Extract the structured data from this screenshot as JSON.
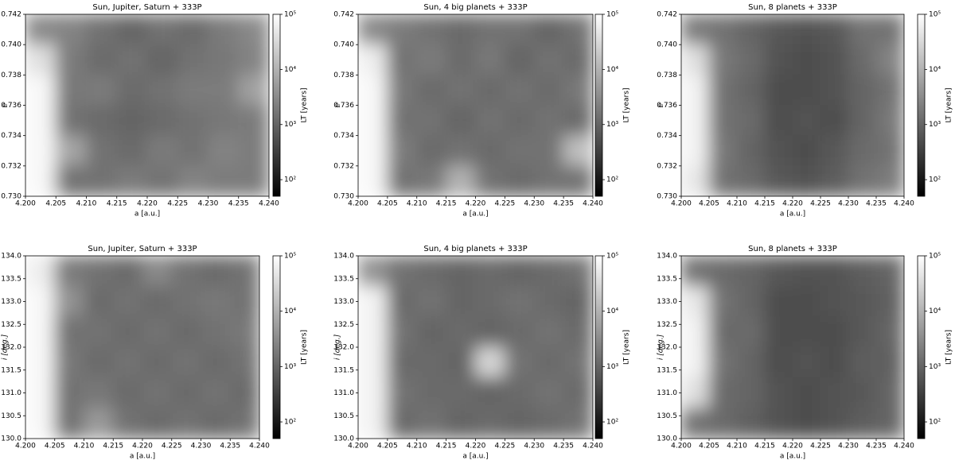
{
  "chart_data": [
    {
      "type": "heatmap",
      "title": "Sun, Jupiter, Saturn + 333P",
      "x_label": "a [a.u.]",
      "y_label": "e",
      "xlim": [
        4.2,
        4.24
      ],
      "xticks": [
        {
          "value": 4.2,
          "label": "4.200"
        },
        {
          "value": 4.205,
          "label": "4.205"
        },
        {
          "value": 4.21,
          "label": "4.210"
        },
        {
          "value": 4.215,
          "label": "4.215"
        },
        {
          "value": 4.22,
          "label": "4.220"
        },
        {
          "value": 4.225,
          "label": "4.225"
        },
        {
          "value": 4.23,
          "label": "4.230"
        },
        {
          "value": 4.235,
          "label": "4.235"
        },
        {
          "value": 4.24,
          "label": "4.240"
        }
      ],
      "ylim": [
        0.73,
        0.742
      ],
      "yticks": [
        {
          "value": 0.73,
          "label": "0.730"
        },
        {
          "value": 0.732,
          "label": "0.732"
        },
        {
          "value": 0.734,
          "label": "0.734"
        },
        {
          "value": 0.736,
          "label": "0.736"
        },
        {
          "value": 0.738,
          "label": "0.738"
        },
        {
          "value": 0.74,
          "label": "0.740"
        },
        {
          "value": 0.742,
          "label": "0.742"
        }
      ],
      "z": [
        [
          3000,
          2500,
          1500,
          1000,
          1500,
          1200,
          2000,
          3000
        ],
        [
          40000,
          2000,
          1200,
          1500,
          1000,
          1500,
          1800,
          2500
        ],
        [
          80000,
          1800,
          2000,
          1200,
          1500,
          2000,
          2000,
          6000
        ],
        [
          80000,
          1500,
          1200,
          1000,
          1200,
          1500,
          1800,
          2000
        ],
        [
          80000,
          7000,
          1500,
          1200,
          2000,
          1500,
          2500,
          2000
        ],
        [
          80000,
          1500,
          1500,
          2000,
          1500,
          2500,
          2000,
          2000
        ]
      ],
      "colorbar": {
        "label": "LT [years]",
        "log": true,
        "lim": [
          50,
          100000
        ],
        "ticks": [
          {
            "value": 100,
            "label": "10²"
          },
          {
            "value": 1000,
            "label": "10³"
          },
          {
            "value": 10000,
            "label": "10⁴"
          },
          {
            "value": 100000,
            "label": "10⁵"
          }
        ]
      }
    },
    {
      "type": "heatmap",
      "title": "Sun, 4 big planets + 333P",
      "x_label": "a [a.u.]",
      "y_label": "e",
      "xlim": [
        4.2,
        4.24
      ],
      "xticks": [
        {
          "value": 4.2,
          "label": "4.200"
        },
        {
          "value": 4.205,
          "label": "4.205"
        },
        {
          "value": 4.21,
          "label": "4.210"
        },
        {
          "value": 4.215,
          "label": "4.215"
        },
        {
          "value": 4.22,
          "label": "4.220"
        },
        {
          "value": 4.225,
          "label": "4.225"
        },
        {
          "value": 4.23,
          "label": "4.230"
        },
        {
          "value": 4.235,
          "label": "4.235"
        },
        {
          "value": 4.24,
          "label": "4.240"
        }
      ],
      "ylim": [
        0.73,
        0.742
      ],
      "yticks": [
        {
          "value": 0.73,
          "label": "0.730"
        },
        {
          "value": 0.732,
          "label": "0.732"
        },
        {
          "value": 0.734,
          "label": "0.734"
        },
        {
          "value": 0.736,
          "label": "0.736"
        },
        {
          "value": 0.738,
          "label": "0.738"
        },
        {
          "value": 0.74,
          "label": "0.740"
        },
        {
          "value": 0.742,
          "label": "0.742"
        }
      ],
      "z": [
        [
          3000,
          2000,
          1500,
          1200,
          1500,
          1500,
          1000,
          1500
        ],
        [
          60000,
          1500,
          2000,
          1200,
          1800,
          1000,
          1500,
          1200
        ],
        [
          80000,
          1800,
          1200,
          1500,
          1200,
          1500,
          1200,
          1800
        ],
        [
          80000,
          1500,
          1500,
          1000,
          1500,
          1200,
          1500,
          1200
        ],
        [
          80000,
          2000,
          1200,
          1500,
          1200,
          1500,
          1500,
          15000
        ],
        [
          80000,
          1500,
          1800,
          10000,
          1500,
          1200,
          1500,
          1500
        ]
      ],
      "colorbar": {
        "label": "LT [years]",
        "log": true,
        "lim": [
          50,
          100000
        ],
        "ticks": [
          {
            "value": 100,
            "label": "10²"
          },
          {
            "value": 1000,
            "label": "10³"
          },
          {
            "value": 10000,
            "label": "10⁴"
          },
          {
            "value": 100000,
            "label": "10⁵"
          }
        ]
      }
    },
    {
      "type": "heatmap",
      "title": "Sun, 8 planets + 333P",
      "x_label": "a [a.u.]",
      "y_label": "e",
      "xlim": [
        4.2,
        4.24
      ],
      "xticks": [
        {
          "value": 4.2,
          "label": "4.200"
        },
        {
          "value": 4.205,
          "label": "4.205"
        },
        {
          "value": 4.21,
          "label": "4.210"
        },
        {
          "value": 4.215,
          "label": "4.215"
        },
        {
          "value": 4.22,
          "label": "4.220"
        },
        {
          "value": 4.225,
          "label": "4.225"
        },
        {
          "value": 4.23,
          "label": "4.230"
        },
        {
          "value": 4.235,
          "label": "4.235"
        },
        {
          "value": 4.24,
          "label": "4.240"
        }
      ],
      "ylim": [
        0.73,
        0.742
      ],
      "yticks": [
        {
          "value": 0.73,
          "label": "0.730"
        },
        {
          "value": 0.732,
          "label": "0.732"
        },
        {
          "value": 0.734,
          "label": "0.734"
        },
        {
          "value": 0.736,
          "label": "0.736"
        },
        {
          "value": 0.738,
          "label": "0.738"
        },
        {
          "value": 0.74,
          "label": "0.740"
        },
        {
          "value": 0.742,
          "label": "0.742"
        }
      ],
      "z": [
        [
          2000,
          1500,
          1000,
          700,
          600,
          700,
          1500,
          1500
        ],
        [
          40000,
          1800,
          1200,
          600,
          500,
          600,
          1200,
          2500
        ],
        [
          70000,
          1500,
          1000,
          500,
          500,
          600,
          1000,
          1500
        ],
        [
          70000,
          1500,
          1200,
          500,
          600,
          500,
          1000,
          1800
        ],
        [
          70000,
          1800,
          1000,
          600,
          500,
          700,
          1200,
          1500
        ],
        [
          50000,
          1500,
          1200,
          700,
          600,
          800,
          1500,
          2000
        ]
      ],
      "colorbar": {
        "label": "LT [years]",
        "log": true,
        "lim": [
          50,
          100000
        ],
        "ticks": [
          {
            "value": 100,
            "label": "10²"
          },
          {
            "value": 1000,
            "label": "10³"
          },
          {
            "value": 10000,
            "label": "10⁴"
          },
          {
            "value": 100000,
            "label": "10⁵"
          }
        ]
      }
    },
    {
      "type": "heatmap",
      "title": "Sun, Jupiter, Saturn + 333P",
      "x_label": "a [a.u.]",
      "y_label": "i [deg.]",
      "xlim": [
        4.2,
        4.24
      ],
      "xticks": [
        {
          "value": 4.2,
          "label": "4.200"
        },
        {
          "value": 4.205,
          "label": "4.205"
        },
        {
          "value": 4.21,
          "label": "4.210"
        },
        {
          "value": 4.215,
          "label": "4.215"
        },
        {
          "value": 4.22,
          "label": "4.220"
        },
        {
          "value": 4.225,
          "label": "4.225"
        },
        {
          "value": 4.23,
          "label": "4.230"
        },
        {
          "value": 4.235,
          "label": "4.235"
        },
        {
          "value": 4.24,
          "label": "4.240"
        }
      ],
      "ylim": [
        130,
        134
      ],
      "yticks": [
        {
          "value": 130,
          "label": "130.0"
        },
        {
          "value": 130.5,
          "label": "130.5"
        },
        {
          "value": 131,
          "label": "131.0"
        },
        {
          "value": 131.5,
          "label": "131.5"
        },
        {
          "value": 132,
          "label": "132.0"
        },
        {
          "value": 132.5,
          "label": "132.5"
        },
        {
          "value": 133,
          "label": "133.0"
        },
        {
          "value": 133.5,
          "label": "133.5"
        },
        {
          "value": 134,
          "label": "134.0"
        }
      ],
      "z": [
        [
          60000,
          2000,
          1500,
          1200,
          3000,
          1500,
          1200,
          1500
        ],
        [
          80000,
          4000,
          1200,
          1500,
          1200,
          1500,
          1800,
          1500
        ],
        [
          80000,
          1500,
          1500,
          1200,
          1500,
          1200,
          1500,
          1800
        ],
        [
          80000,
          1800,
          1200,
          1500,
          1200,
          1500,
          1200,
          1500
        ],
        [
          80000,
          1500,
          1800,
          1200,
          1500,
          1200,
          1500,
          1200
        ],
        [
          80000,
          1500,
          5000,
          1500,
          1200,
          1500,
          1200,
          1500
        ]
      ],
      "colorbar": {
        "label": "LT [years]",
        "log": true,
        "lim": [
          50,
          100000
        ],
        "ticks": [
          {
            "value": 100,
            "label": "10²"
          },
          {
            "value": 1000,
            "label": "10³"
          },
          {
            "value": 10000,
            "label": "10⁴"
          },
          {
            "value": 100000,
            "label": "10⁵"
          }
        ]
      }
    },
    {
      "type": "heatmap",
      "title": "Sun, 4 big planets + 333P",
      "x_label": "a [a.u.]",
      "y_label": "i [deg.]",
      "xlim": [
        4.2,
        4.24
      ],
      "xticks": [
        {
          "value": 4.2,
          "label": "4.200"
        },
        {
          "value": 4.205,
          "label": "4.205"
        },
        {
          "value": 4.21,
          "label": "4.210"
        },
        {
          "value": 4.215,
          "label": "4.215"
        },
        {
          "value": 4.22,
          "label": "4.220"
        },
        {
          "value": 4.225,
          "label": "4.225"
        },
        {
          "value": 4.23,
          "label": "4.230"
        },
        {
          "value": 4.235,
          "label": "4.235"
        },
        {
          "value": 4.24,
          "label": "4.240"
        }
      ],
      "ylim": [
        130,
        134
      ],
      "yticks": [
        {
          "value": 130,
          "label": "130.0"
        },
        {
          "value": 130.5,
          "label": "130.5"
        },
        {
          "value": 131,
          "label": "131.0"
        },
        {
          "value": 131.5,
          "label": "131.5"
        },
        {
          "value": 132,
          "label": "132.0"
        },
        {
          "value": 132.5,
          "label": "132.5"
        },
        {
          "value": 133,
          "label": "133.0"
        },
        {
          "value": 133.5,
          "label": "133.5"
        },
        {
          "value": 134,
          "label": "134.0"
        }
      ],
      "z": [
        [
          4000,
          1500,
          1200,
          1000,
          1200,
          1000,
          1200,
          1500
        ],
        [
          70000,
          1200,
          1500,
          1000,
          1200,
          1500,
          1200,
          1000
        ],
        [
          70000,
          1500,
          1000,
          1200,
          1000,
          1200,
          1500,
          1200
        ],
        [
          70000,
          1200,
          1200,
          1000,
          30000,
          1500,
          1200,
          1500
        ],
        [
          70000,
          1500,
          1200,
          1200,
          1000,
          1200,
          1500,
          1200
        ],
        [
          70000,
          1200,
          1500,
          1000,
          1200,
          1000,
          1200,
          1500
        ]
      ],
      "colorbar": {
        "label": "LT [years]",
        "log": true,
        "lim": [
          50,
          100000
        ],
        "ticks": [
          {
            "value": 100,
            "label": "10²"
          },
          {
            "value": 1000,
            "label": "10³"
          },
          {
            "value": 10000,
            "label": "10⁴"
          },
          {
            "value": 100000,
            "label": "10⁵"
          }
        ]
      }
    },
    {
      "type": "heatmap",
      "title": "Sun, 8 planets + 333P",
      "x_label": "a [a.u.]",
      "y_label": "i [deg.]",
      "xlim": [
        4.2,
        4.24
      ],
      "xticks": [
        {
          "value": 4.2,
          "label": "4.200"
        },
        {
          "value": 4.205,
          "label": "4.205"
        },
        {
          "value": 4.21,
          "label": "4.210"
        },
        {
          "value": 4.215,
          "label": "4.215"
        },
        {
          "value": 4.22,
          "label": "4.220"
        },
        {
          "value": 4.225,
          "label": "4.225"
        },
        {
          "value": 4.23,
          "label": "4.230"
        },
        {
          "value": 4.235,
          "label": "4.235"
        },
        {
          "value": 4.24,
          "label": "4.240"
        }
      ],
      "ylim": [
        130,
        134
      ],
      "yticks": [
        {
          "value": 130,
          "label": "130.0"
        },
        {
          "value": 130.5,
          "label": "130.5"
        },
        {
          "value": 131,
          "label": "131.0"
        },
        {
          "value": 131.5,
          "label": "131.5"
        },
        {
          "value": 132,
          "label": "132.0"
        },
        {
          "value": 132.5,
          "label": "132.5"
        },
        {
          "value": 133,
          "label": "133.0"
        },
        {
          "value": 133.5,
          "label": "133.5"
        },
        {
          "value": 134,
          "label": "134.0"
        }
      ],
      "z": [
        [
          1500,
          1200,
          1000,
          700,
          600,
          600,
          800,
          1000
        ],
        [
          50000,
          1500,
          1000,
          500,
          500,
          600,
          700,
          900
        ],
        [
          70000,
          1200,
          1200,
          500,
          500,
          500,
          700,
          1000
        ],
        [
          70000,
          1500,
          1000,
          500,
          600,
          500,
          800,
          900
        ],
        [
          40000,
          1200,
          1000,
          600,
          500,
          600,
          700,
          1000
        ],
        [
          1500,
          1200,
          900,
          600,
          500,
          600,
          800,
          1000
        ]
      ],
      "colorbar": {
        "label": "LT [years]",
        "log": true,
        "lim": [
          50,
          100000
        ],
        "ticks": [
          {
            "value": 100,
            "label": "10²"
          },
          {
            "value": 1000,
            "label": "10³"
          },
          {
            "value": 10000,
            "label": "10⁴"
          },
          {
            "value": 100000,
            "label": "10⁵"
          }
        ]
      }
    }
  ]
}
